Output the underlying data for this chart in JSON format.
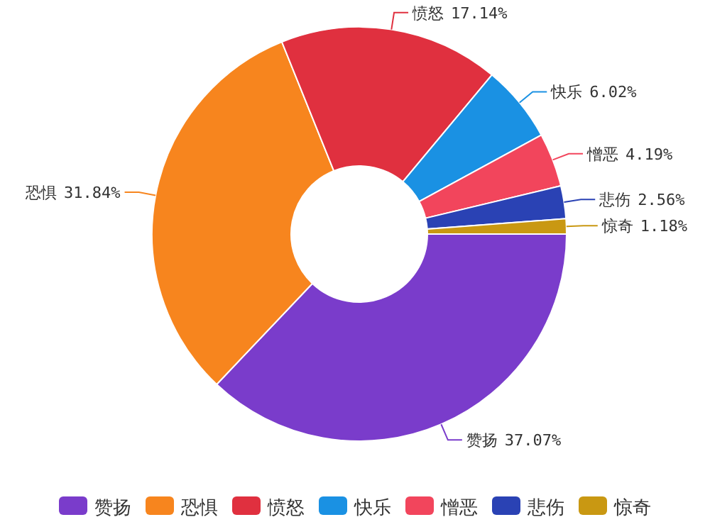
{
  "chart_data": {
    "type": "donut",
    "categories": [
      "赞扬",
      "恐惧",
      "愤怒",
      "快乐",
      "憎恶",
      "悲伤",
      "惊奇"
    ],
    "values": [
      37.07,
      31.84,
      17.14,
      6.02,
      4.19,
      2.56,
      1.18
    ],
    "colors": [
      "#7a3ccb",
      "#f7851e",
      "#e0303f",
      "#1a91e3",
      "#f2455c",
      "#2a42b4",
      "#c99812"
    ],
    "value_labels": [
      "37.07%",
      "31.84%",
      "17.14%",
      "6.02%",
      "4.19%",
      "2.56%",
      "1.18%"
    ],
    "legend": "bottom"
  }
}
